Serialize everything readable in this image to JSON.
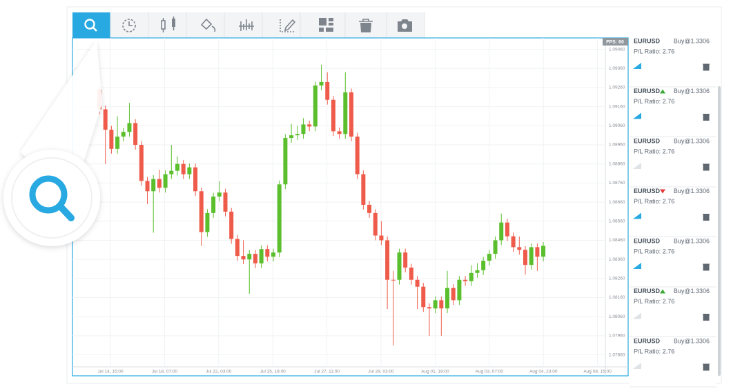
{
  "chart_data": {
    "type": "candlestick",
    "fps_label": "FPS: 60",
    "open": [
      1.09249,
      1.09146,
      1.09039,
      1.08939,
      1.09003,
      1.09028,
      1.09074,
      1.0896,
      1.08771,
      1.08717,
      1.08781,
      1.08735,
      1.08806,
      1.08824,
      1.0886,
      1.08806,
      1.08842,
      1.08717,
      1.08503,
      1.08603,
      1.08689,
      1.0871,
      1.0861,
      1.08467,
      1.08378,
      1.0836,
      1.08389,
      1.08339,
      1.08414,
      1.08374,
      1.08396,
      1.08753,
      1.08996,
      1.0901,
      1.09017,
      1.09067,
      1.09056,
      1.09271,
      1.09289,
      1.09196,
      1.09031,
      1.09017,
      1.09235,
      1.09003,
      1.08806,
      1.08646,
      1.08603,
      1.08485,
      1.0846,
      1.08253,
      1.08253,
      1.08396,
      1.08317,
      1.08253,
      1.08217,
      1.0811,
      1.08103,
      1.08146,
      1.08103,
      1.0821,
      1.08146,
      1.08253,
      1.08246,
      1.08289,
      1.08303,
      1.08353,
      1.08389,
      1.0846,
      1.08553,
      1.08481,
      1.08424,
      1.0841,
      1.08331,
      1.08424,
      1.08374
    ],
    "high": [
      1.09269,
      1.09166,
      1.09059,
      1.0911,
      1.09048,
      1.0918,
      1.09094,
      1.0898,
      1.08791,
      1.08801,
      1.0883,
      1.08826,
      1.0896,
      1.089,
      1.0888,
      1.08862,
      1.08862,
      1.08737,
      1.08623,
      1.08709,
      1.0877,
      1.0873,
      1.0863,
      1.08487,
      1.0846,
      1.08409,
      1.08409,
      1.08434,
      1.08434,
      1.08416,
      1.08773,
      1.09016,
      1.0907,
      1.0906,
      1.091,
      1.09087,
      1.09291,
      1.0938,
      1.0934,
      1.09216,
      1.09051,
      1.0934,
      1.09255,
      1.09023,
      1.08826,
      1.08666,
      1.08623,
      1.0856,
      1.0848,
      1.083,
      1.08416,
      1.08416,
      1.08337,
      1.08273,
      1.08237,
      1.0813,
      1.08166,
      1.08166,
      1.083,
      1.0823,
      1.08273,
      1.08273,
      1.0833,
      1.0834,
      1.08373,
      1.08409,
      1.0848,
      1.086,
      1.08573,
      1.08501,
      1.0848,
      1.0843,
      1.08444,
      1.08444,
      1.08451
    ],
    "low": [
      1.09121,
      1.0886,
      1.08914,
      1.08914,
      1.08978,
      1.09003,
      1.08935,
      1.08746,
      1.0865,
      1.085,
      1.0871,
      1.0871,
      1.08781,
      1.08799,
      1.08781,
      1.08781,
      1.08692,
      1.0843,
      1.08478,
      1.08578,
      1.08664,
      1.08585,
      1.08442,
      1.08353,
      1.08335,
      1.0818,
      1.08314,
      1.08314,
      1.08349,
      1.08349,
      1.08371,
      1.08728,
      1.08971,
      1.08985,
      1.08992,
      1.09031,
      1.09031,
      1.09246,
      1.09171,
      1.09006,
      1.08992,
      1.08992,
      1.08978,
      1.08781,
      1.08621,
      1.08578,
      1.0846,
      1.08435,
      1.081,
      1.0791,
      1.08228,
      1.08292,
      1.08228,
      1.081,
      1.08085,
      1.0796,
      1.08078,
      1.0796,
      1.08078,
      1.08121,
      1.08121,
      1.08221,
      1.08221,
      1.08264,
      1.08278,
      1.08328,
      1.08364,
      1.08435,
      1.08456,
      1.08399,
      1.08385,
      1.0828,
      1.08306,
      1.083,
      1.08349
    ],
    "close": [
      1.09146,
      1.09039,
      1.08939,
      1.09003,
      1.09028,
      1.09074,
      1.0896,
      1.08771,
      1.08717,
      1.08781,
      1.08735,
      1.08806,
      1.08824,
      1.0886,
      1.08806,
      1.08842,
      1.08717,
      1.08503,
      1.08603,
      1.08689,
      1.0871,
      1.0861,
      1.08467,
      1.08378,
      1.0836,
      1.08389,
      1.08339,
      1.08414,
      1.08374,
      1.08396,
      1.08753,
      1.08996,
      1.0901,
      1.09017,
      1.09067,
      1.09056,
      1.09271,
      1.09289,
      1.09196,
      1.09031,
      1.09017,
      1.09235,
      1.09003,
      1.08806,
      1.08646,
      1.08603,
      1.08485,
      1.0846,
      1.08253,
      1.08253,
      1.08396,
      1.08317,
      1.08253,
      1.08217,
      1.0811,
      1.08103,
      1.08146,
      1.08103,
      1.0821,
      1.08146,
      1.08253,
      1.08246,
      1.08289,
      1.08303,
      1.08353,
      1.08389,
      1.0846,
      1.08553,
      1.08481,
      1.08424,
      1.0841,
      1.08331,
      1.08424,
      1.08374,
      1.08431
    ],
    "up_color": "#5bbf2d",
    "down_color": "#ef5b4b",
    "ylim": [
      1.0775,
      1.0952
    ],
    "yticks": [
      {
        "value": 1.0946,
        "label": "1.09460"
      },
      {
        "value": 1.0936,
        "label": "1.09360"
      },
      {
        "value": 1.0926,
        "label": "1.09260"
      },
      {
        "value": 1.0916,
        "label": "1.09160"
      },
      {
        "value": 1.0906,
        "label": "1.09060"
      },
      {
        "value": 1.0896,
        "label": "1.08960"
      },
      {
        "value": 1.0886,
        "label": "1.08860"
      },
      {
        "value": 1.0876,
        "label": "1.08760"
      },
      {
        "value": 1.0866,
        "label": "1.08660"
      },
      {
        "value": 1.0856,
        "label": "1.08560"
      },
      {
        "value": 1.0846,
        "label": "1.08460"
      },
      {
        "value": 1.0836,
        "label": "1.08360"
      },
      {
        "value": 1.0826,
        "label": "1.08260"
      },
      {
        "value": 1.0816,
        "label": "1.08160"
      },
      {
        "value": 1.0806,
        "label": "1.08060"
      },
      {
        "value": 1.0796,
        "label": "1.07960"
      },
      {
        "value": 1.0786,
        "label": "1.07860"
      }
    ],
    "x_labels": [
      "Jul 14, 15:00",
      "Jul 18, 07:00",
      "Jul 22, 03:00",
      "Jul 25, 19:00",
      "Jul 27, 11:00",
      "Jul 29, 03:00",
      "Aug 01, 19:00",
      "Aug 03, 07:00",
      "Aug 04, 23:00",
      "Aug 08, 15:00"
    ],
    "grid": true
  },
  "sidebar": {
    "items": [
      {
        "symbol": "EURUSD",
        "order": "Buy@1.3306",
        "ratio": "P/L Ratio: 2.76"
      },
      {
        "symbol": "EURUSD",
        "order": "Buy@1.3306",
        "ratio": "P/L Ratio: 2.76"
      },
      {
        "symbol": "EURUSD",
        "order": "Buy@1.3306",
        "ratio": "P/L Ratio: 2.76"
      },
      {
        "symbol": "EURUSD",
        "order": "Buy@1.3306",
        "ratio": "P/L Ratio: 2.76"
      },
      {
        "symbol": "EURUSD",
        "order": "Buy@1.3306",
        "ratio": "P/L Ratio: 2.76"
      },
      {
        "symbol": "EURUSD",
        "order": "Buy@1.3306",
        "ratio": "P/L Ratio: 2.76"
      },
      {
        "symbol": "EURUSD",
        "order": "Buy@1.3306",
        "ratio": "P/L Ratio: 2.76"
      }
    ]
  }
}
